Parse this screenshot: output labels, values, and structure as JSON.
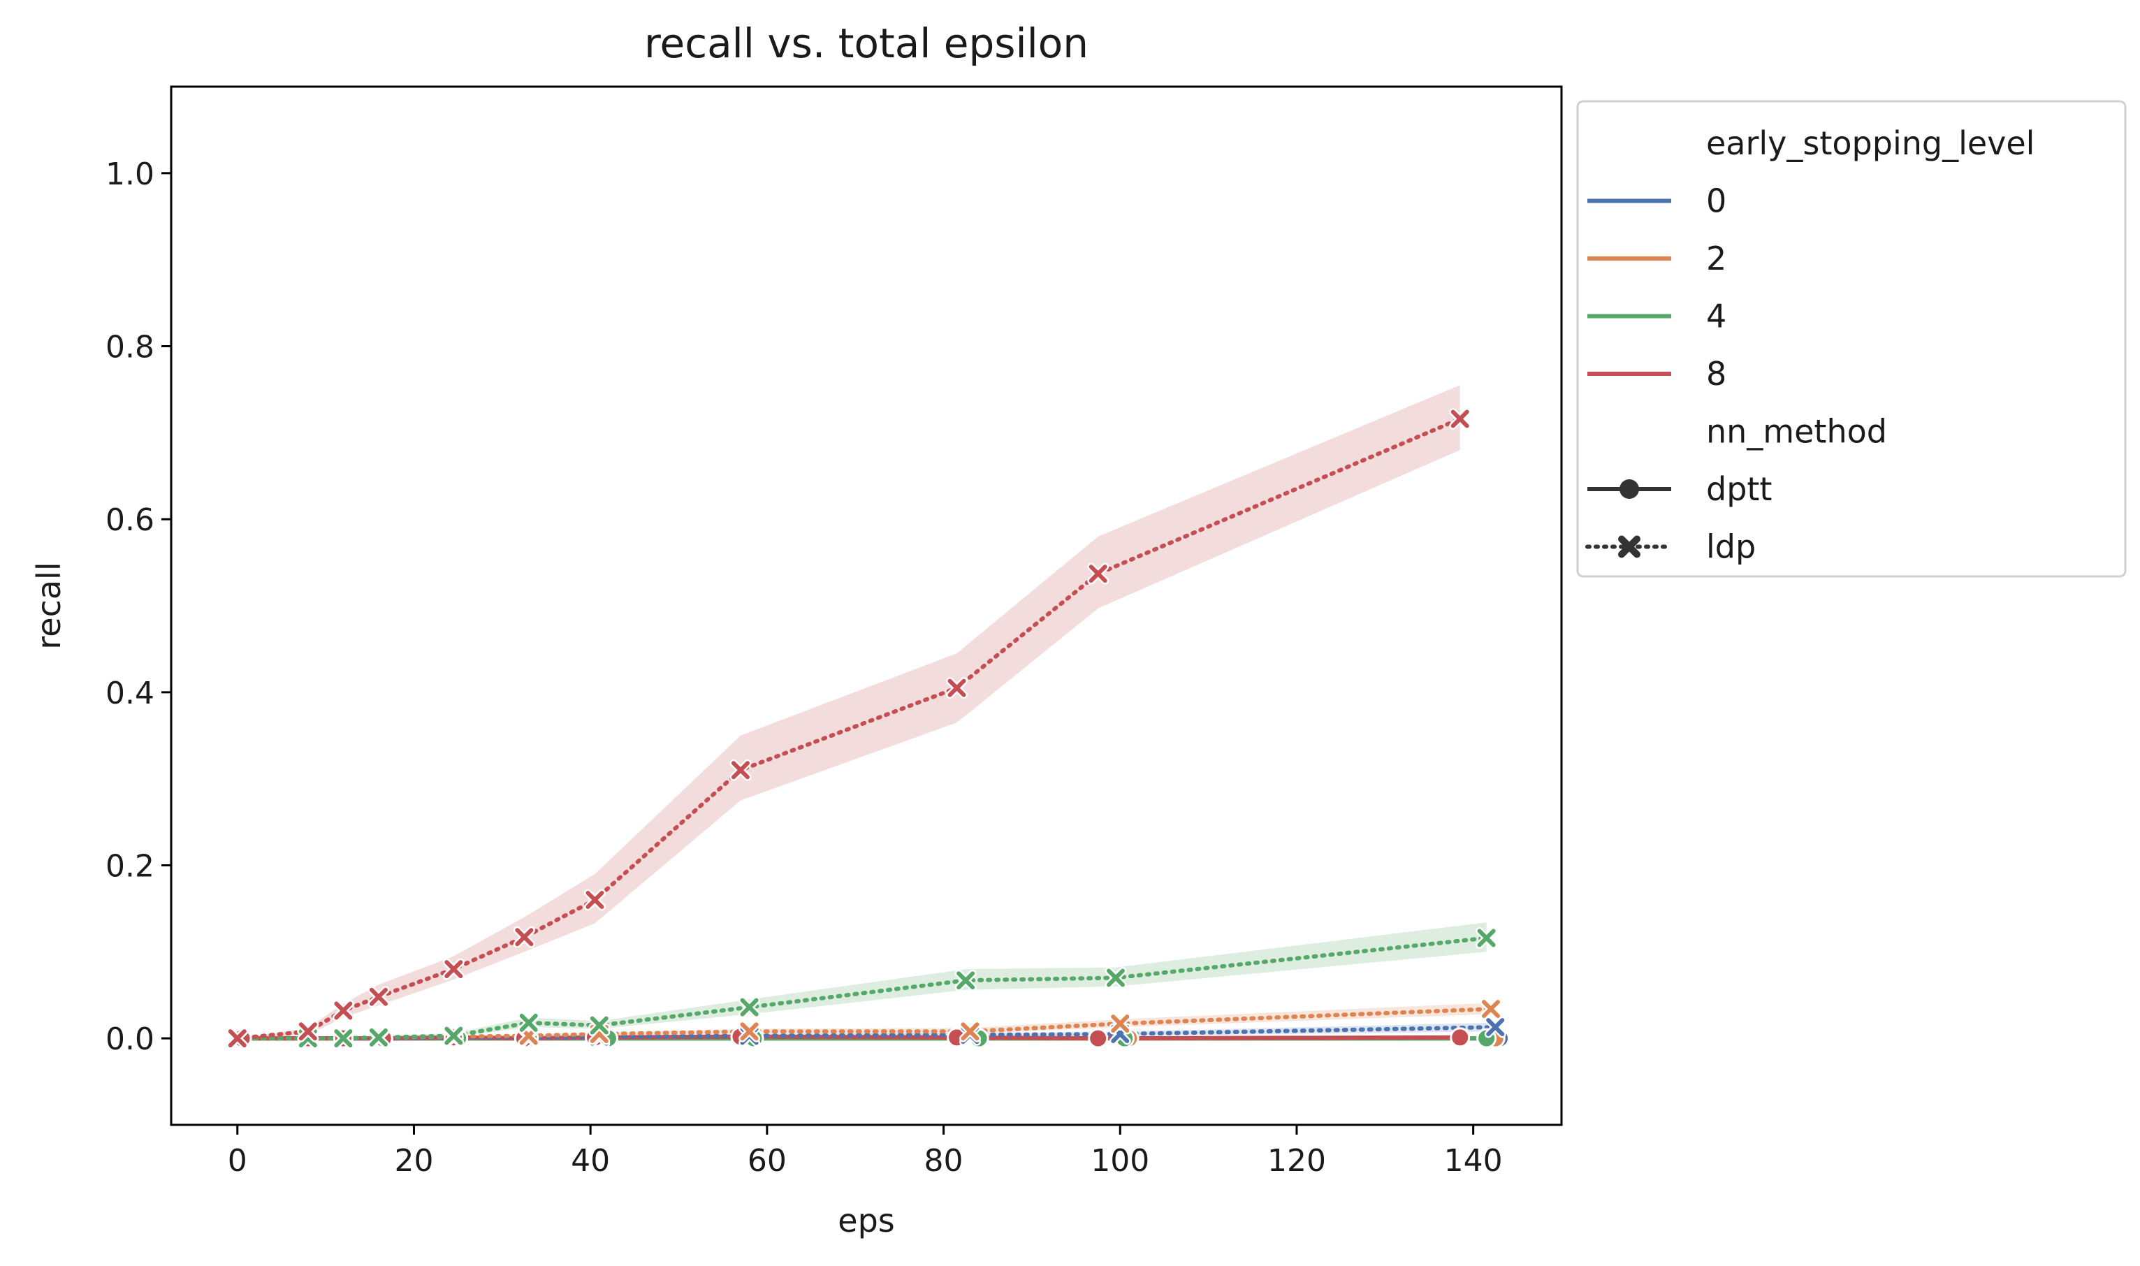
{
  "chart_data": {
    "type": "line",
    "title": "recall vs. total epsilon",
    "xlabel": "eps",
    "ylabel": "recall",
    "xlim": [
      -7.5,
      150
    ],
    "ylim": [
      -0.1,
      1.1
    ],
    "xticks": [
      0,
      20,
      40,
      60,
      80,
      100,
      120,
      140
    ],
    "yticks": [
      0.0,
      0.2,
      0.4,
      0.6,
      0.8,
      1.0
    ],
    "xtick_labels": [
      "0",
      "20",
      "40",
      "60",
      "80",
      "100",
      "120",
      "140"
    ],
    "ytick_labels": [
      "0.0",
      "0.2",
      "0.4",
      "0.6",
      "0.8",
      "1.0"
    ],
    "grid": false,
    "legend": {
      "placement": "outside-upper-right",
      "hue_title": "early_stopping_level",
      "hue_entries": [
        {
          "label": "0",
          "color": "#4c72b0"
        },
        {
          "label": "2",
          "color": "#dd8452"
        },
        {
          "label": "4",
          "color": "#55a868"
        },
        {
          "label": "8",
          "color": "#c44e52"
        }
      ],
      "style_title": "nn_method",
      "style_entries": [
        {
          "label": "dptt",
          "marker": "circle",
          "dash": "solid"
        },
        {
          "label": "ldp",
          "marker": "x",
          "dash": "dotted"
        }
      ]
    },
    "series": [
      {
        "level": "0",
        "method": "ldp",
        "color": "#4c72b0",
        "x": [
          0,
          8,
          12,
          16,
          24.5,
          33,
          41,
          58,
          83,
          100,
          142.5
        ],
        "y": [
          0,
          0,
          0,
          0,
          0.001,
          0.001,
          0.002,
          0.003,
          0.004,
          0.005,
          0.013
        ],
        "ci_low": [
          0,
          0,
          0,
          0,
          0,
          0,
          0.001,
          0.002,
          0.002,
          0.003,
          0.008
        ],
        "ci_high": [
          0,
          0,
          0,
          0,
          0.002,
          0.002,
          0.003,
          0.005,
          0.006,
          0.008,
          0.018
        ]
      },
      {
        "level": "2",
        "method": "ldp",
        "color": "#dd8452",
        "x": [
          0,
          8,
          12,
          16,
          24.5,
          33,
          41,
          58,
          83,
          100,
          142
        ],
        "y": [
          0,
          0,
          0,
          0.001,
          0.002,
          0.003,
          0.005,
          0.008,
          0.008,
          0.017,
          0.034
        ],
        "ci_low": [
          0,
          0,
          0,
          0,
          0.001,
          0.002,
          0.003,
          0.005,
          0.005,
          0.013,
          0.028
        ],
        "ci_high": [
          0,
          0,
          0,
          0.002,
          0.003,
          0.005,
          0.007,
          0.011,
          0.012,
          0.022,
          0.041
        ]
      },
      {
        "level": "4",
        "method": "ldp",
        "color": "#55a868",
        "x": [
          0,
          8,
          12,
          16,
          24.5,
          33,
          41,
          58,
          82.5,
          99.5,
          141.5
        ],
        "y": [
          0,
          0,
          0,
          0.001,
          0.003,
          0.018,
          0.015,
          0.036,
          0.067,
          0.07,
          0.116
        ],
        "ci_low": [
          0,
          0,
          0,
          0,
          0.001,
          0.013,
          0.011,
          0.028,
          0.056,
          0.06,
          0.1
        ],
        "ci_high": [
          0,
          0,
          0,
          0.003,
          0.006,
          0.024,
          0.02,
          0.045,
          0.08,
          0.082,
          0.134
        ]
      },
      {
        "level": "8",
        "method": "ldp",
        "color": "#c44e52",
        "x": [
          0,
          8,
          12,
          16,
          24.5,
          32.5,
          40.5,
          57,
          81.5,
          97.5,
          138.5
        ],
        "y": [
          0,
          0.008,
          0.032,
          0.048,
          0.08,
          0.117,
          0.16,
          0.31,
          0.405,
          0.537,
          0.716
        ],
        "ci_low": [
          0,
          0.004,
          0.024,
          0.038,
          0.068,
          0.1,
          0.133,
          0.275,
          0.365,
          0.497,
          0.68
        ],
        "ci_high": [
          0,
          0.012,
          0.04,
          0.062,
          0.095,
          0.14,
          0.19,
          0.35,
          0.445,
          0.58,
          0.755
        ]
      },
      {
        "level": "0",
        "method": "dptt",
        "color": "#4c72b0",
        "x": [
          0.5,
          8,
          12,
          16.5,
          25,
          33,
          42,
          58.5,
          84,
          101,
          143
        ],
        "y": [
          0,
          0,
          0,
          0,
          0,
          0,
          0,
          0,
          0,
          0,
          0
        ]
      },
      {
        "level": "2",
        "method": "dptt",
        "color": "#dd8452",
        "x": [
          0.5,
          8,
          12,
          16.5,
          25,
          33,
          42,
          58.5,
          84,
          101,
          142.5
        ],
        "y": [
          0,
          0,
          0,
          0,
          0,
          0,
          0,
          0,
          0,
          0,
          0
        ]
      },
      {
        "level": "4",
        "method": "dptt",
        "color": "#55a868",
        "x": [
          0.5,
          8,
          12,
          16.5,
          25,
          33,
          42,
          58.5,
          84,
          100.5,
          141.5
        ],
        "y": [
          0,
          0,
          0,
          0,
          0,
          0,
          0,
          0,
          0,
          0,
          0
        ]
      },
      {
        "level": "8",
        "method": "dptt",
        "color": "#c44e52",
        "x": [
          0.5,
          8,
          12,
          16.5,
          24.5,
          32.5,
          40.5,
          57,
          81.5,
          97.5,
          138.5
        ],
        "y": [
          0,
          0,
          0,
          0,
          0.001,
          0,
          0.001,
          0.002,
          0.001,
          0,
          0.001
        ]
      }
    ]
  }
}
